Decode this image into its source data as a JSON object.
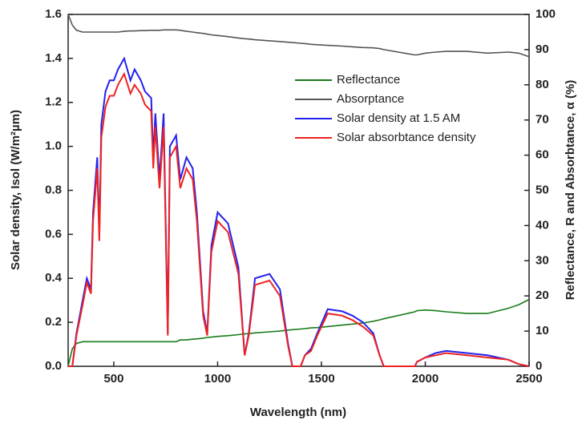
{
  "chart_data": {
    "type": "line",
    "xlabel": "Wavelength (nm)",
    "ylabel": "Solar density, Isol (W/m²µm)",
    "y2label": "Reflectance, R and Absorbtance, α (%)",
    "xlim": [
      280,
      2500
    ],
    "xticks": [
      500,
      1000,
      1500,
      2000,
      2500
    ],
    "ylim": [
      0,
      1.6
    ],
    "yticks": [
      {
        "value": 0,
        "label": "0.0"
      },
      {
        "value": 0.2,
        "label": "0.2"
      },
      {
        "value": 0.4,
        "label": "0.4"
      },
      {
        "value": 0.6,
        "label": "0.6"
      },
      {
        "value": 0.8,
        "label": "0.8"
      },
      {
        "value": 1,
        "label": "1.0"
      },
      {
        "value": 1.2,
        "label": "1.2"
      },
      {
        "value": 1.4,
        "label": "1.4"
      },
      {
        "value": 1.6,
        "label": "1.6"
      }
    ],
    "y2lim": [
      0,
      100
    ],
    "y2ticks": [
      0,
      10,
      20,
      30,
      40,
      50,
      60,
      70,
      80,
      90,
      100
    ],
    "x": [
      280,
      300,
      320,
      350,
      370,
      390,
      400,
      420,
      430,
      440,
      460,
      480,
      500,
      520,
      550,
      580,
      600,
      630,
      650,
      680,
      690,
      700,
      720,
      740,
      760,
      770,
      800,
      820,
      850,
      880,
      900,
      930,
      950,
      970,
      1000,
      1050,
      1100,
      1130,
      1150,
      1180,
      1250,
      1300,
      1340,
      1360,
      1400,
      1420,
      1450,
      1480,
      1530,
      1600,
      1650,
      1700,
      1750,
      1780,
      1800,
      1950,
      1960,
      2000,
      2050,
      2100,
      2200,
      2300,
      2400,
      2450,
      2500
    ],
    "series": [
      {
        "name": "Reflectance",
        "color": "#1a7a1a",
        "axis": "y2",
        "values": [
          0,
          5,
          6.5,
          7,
          7,
          7,
          7,
          7,
          7,
          7,
          7,
          7,
          7,
          7,
          7,
          7,
          7,
          7,
          7,
          7,
          7,
          7,
          7,
          7,
          7,
          7,
          7,
          7.5,
          7.5,
          7.7,
          7.8,
          8,
          8.2,
          8.3,
          8.5,
          8.7,
          9,
          9.2,
          9.3,
          9.5,
          9.8,
          10,
          10.3,
          10.4,
          10.6,
          10.7,
          10.9,
          11,
          11.3,
          11.7,
          12,
          12.3,
          12.8,
          13.2,
          13.5,
          15.5,
          15.8,
          16,
          15.8,
          15.5,
          15,
          15,
          16.5,
          17.5,
          19
        ]
      },
      {
        "name": "Absorptance",
        "color": "#555555",
        "axis": "y2",
        "values": [
          100,
          97,
          95.5,
          95,
          95,
          95,
          95,
          95,
          95,
          95,
          95,
          95,
          95,
          95,
          95.2,
          95.3,
          95.3,
          95.4,
          95.4,
          95.5,
          95.5,
          95.5,
          95.5,
          95.6,
          95.6,
          95.6,
          95.6,
          95.5,
          95.2,
          95,
          94.8,
          94.6,
          94.4,
          94.2,
          94,
          93.7,
          93.3,
          93.1,
          93,
          92.8,
          92.5,
          92.3,
          92.1,
          92,
          91.8,
          91.7,
          91.5,
          91.4,
          91.2,
          91,
          90.8,
          90.6,
          90.5,
          90.3,
          90,
          88.5,
          88.5,
          89,
          89.3,
          89.5,
          89.5,
          89,
          89.3,
          89,
          88
        ]
      },
      {
        "name": "Solar density at 1.5 AM",
        "color": "#2222ee",
        "values": [
          0,
          0,
          0.15,
          0.3,
          0.4,
          0.35,
          0.7,
          0.95,
          0.6,
          1.1,
          1.25,
          1.3,
          1.3,
          1.35,
          1.4,
          1.3,
          1.35,
          1.3,
          1.25,
          1.22,
          0.95,
          1.15,
          0.85,
          1.15,
          0.15,
          1.0,
          1.05,
          0.85,
          0.95,
          0.9,
          0.7,
          0.25,
          0.15,
          0.55,
          0.7,
          0.65,
          0.45,
          0.05,
          0.15,
          0.4,
          0.42,
          0.35,
          0.1,
          0,
          0,
          0.05,
          0.08,
          0.15,
          0.26,
          0.25,
          0.23,
          0.2,
          0.15,
          0.05,
          0,
          0,
          0.02,
          0.04,
          0.06,
          0.07,
          0.06,
          0.05,
          0.03,
          0.01,
          0
        ]
      },
      {
        "name": "Solar absorbtance density",
        "color": "#ee2222",
        "values": [
          0,
          0,
          0.14,
          0.28,
          0.38,
          0.33,
          0.66,
          0.9,
          0.57,
          1.04,
          1.18,
          1.23,
          1.23,
          1.28,
          1.33,
          1.24,
          1.28,
          1.24,
          1.19,
          1.16,
          0.9,
          1.09,
          0.81,
          1.09,
          0.14,
          0.95,
          1.0,
          0.81,
          0.9,
          0.85,
          0.66,
          0.23,
          0.14,
          0.52,
          0.66,
          0.61,
          0.42,
          0.05,
          0.14,
          0.37,
          0.39,
          0.32,
          0.09,
          0,
          0,
          0.05,
          0.07,
          0.14,
          0.24,
          0.23,
          0.21,
          0.18,
          0.14,
          0.05,
          0,
          0,
          0.02,
          0.04,
          0.05,
          0.06,
          0.05,
          0.04,
          0.03,
          0.01,
          0
        ]
      }
    ]
  }
}
